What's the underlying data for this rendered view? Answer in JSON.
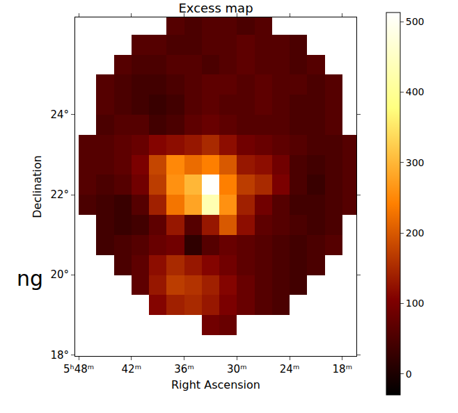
{
  "chart_data": {
    "type": "heatmap",
    "title": "Excess map",
    "x_label": "Right Ascension",
    "y_label": "Declination",
    "x": [
      86.75,
      86.25,
      85.75,
      85.25,
      84.75,
      84.25,
      83.75,
      83.25,
      82.75,
      82.25,
      81.75,
      81.25,
      80.75,
      80.25,
      79.75,
      79.25
    ],
    "y": [
      18.75,
      19.25,
      19.75,
      20.25,
      20.75,
      21.25,
      21.75,
      22.25,
      22.75,
      23.25,
      23.75,
      24.25,
      24.75,
      25.25,
      25.75,
      26.25
    ],
    "z": [
      [
        null,
        null,
        null,
        null,
        null,
        null,
        null,
        90,
        80,
        null,
        null,
        null,
        null,
        null,
        null,
        null
      ],
      [
        null,
        null,
        null,
        null,
        110,
        140,
        150,
        130,
        100,
        80,
        60,
        50,
        null,
        null,
        null,
        null
      ],
      [
        null,
        null,
        null,
        70,
        130,
        170,
        160,
        140,
        110,
        80,
        60,
        50,
        40,
        null,
        null,
        null
      ],
      [
        null,
        null,
        50,
        70,
        120,
        150,
        130,
        110,
        90,
        70,
        60,
        50,
        40,
        50,
        null,
        null
      ],
      [
        null,
        40,
        50,
        60,
        80,
        90,
        20,
        60,
        80,
        70,
        60,
        50,
        40,
        50,
        60,
        null
      ],
      [
        null,
        40,
        30,
        40,
        70,
        130,
        60,
        130,
        200,
        120,
        70,
        60,
        50,
        40,
        50,
        null
      ],
      [
        50,
        40,
        30,
        60,
        140,
        230,
        280,
        430,
        260,
        140,
        90,
        60,
        40,
        40,
        50,
        60
      ],
      [
        60,
        50,
        60,
        90,
        170,
        260,
        300,
        510,
        240,
        170,
        150,
        100,
        50,
        30,
        50,
        60
      ],
      [
        60,
        60,
        70,
        100,
        180,
        250,
        220,
        240,
        200,
        130,
        120,
        90,
        50,
        40,
        50,
        60
      ],
      [
        60,
        60,
        70,
        80,
        110,
        120,
        130,
        150,
        120,
        90,
        80,
        70,
        60,
        50,
        50,
        60
      ],
      [
        null,
        50,
        60,
        60,
        40,
        50,
        70,
        80,
        70,
        60,
        60,
        60,
        50,
        50,
        60,
        null
      ],
      [
        null,
        60,
        50,
        40,
        30,
        40,
        60,
        70,
        60,
        60,
        70,
        60,
        50,
        50,
        60,
        null
      ],
      [
        null,
        60,
        50,
        40,
        40,
        50,
        60,
        70,
        70,
        60,
        70,
        60,
        60,
        50,
        60,
        null
      ],
      [
        null,
        null,
        60,
        50,
        50,
        60,
        60,
        50,
        60,
        70,
        60,
        60,
        50,
        60,
        null,
        null
      ],
      [
        null,
        null,
        null,
        60,
        60,
        50,
        50,
        60,
        60,
        70,
        60,
        60,
        50,
        null,
        null,
        null
      ],
      [
        null,
        null,
        null,
        null,
        null,
        60,
        50,
        60,
        60,
        50,
        60,
        null,
        null,
        null,
        null,
        null
      ]
    ],
    "xlim": [
      87.1,
      79.1
    ],
    "ylim": [
      17.97,
      26.43
    ],
    "xticks": [
      {
        "value": 87,
        "label": "5ʰ48ᵐ"
      },
      {
        "value": 85.5,
        "label": "42ᵐ"
      },
      {
        "value": 84,
        "label": "36ᵐ"
      },
      {
        "value": 82.5,
        "label": "30ᵐ"
      },
      {
        "value": 81,
        "label": "24ᵐ"
      },
      {
        "value": 79.5,
        "label": "18ᵐ"
      }
    ],
    "yticks": [
      {
        "value": 18,
        "label": "18°"
      },
      {
        "value": 20,
        "label": "20°"
      },
      {
        "value": 22,
        "label": "22°"
      },
      {
        "value": 24,
        "label": "24°"
      }
    ],
    "colorbar": {
      "range": [
        -30,
        513
      ],
      "ticks": [
        0,
        100,
        200,
        300,
        400,
        500
      ]
    },
    "annotations": [
      {
        "text": "ng"
      }
    ],
    "grid": false
  }
}
